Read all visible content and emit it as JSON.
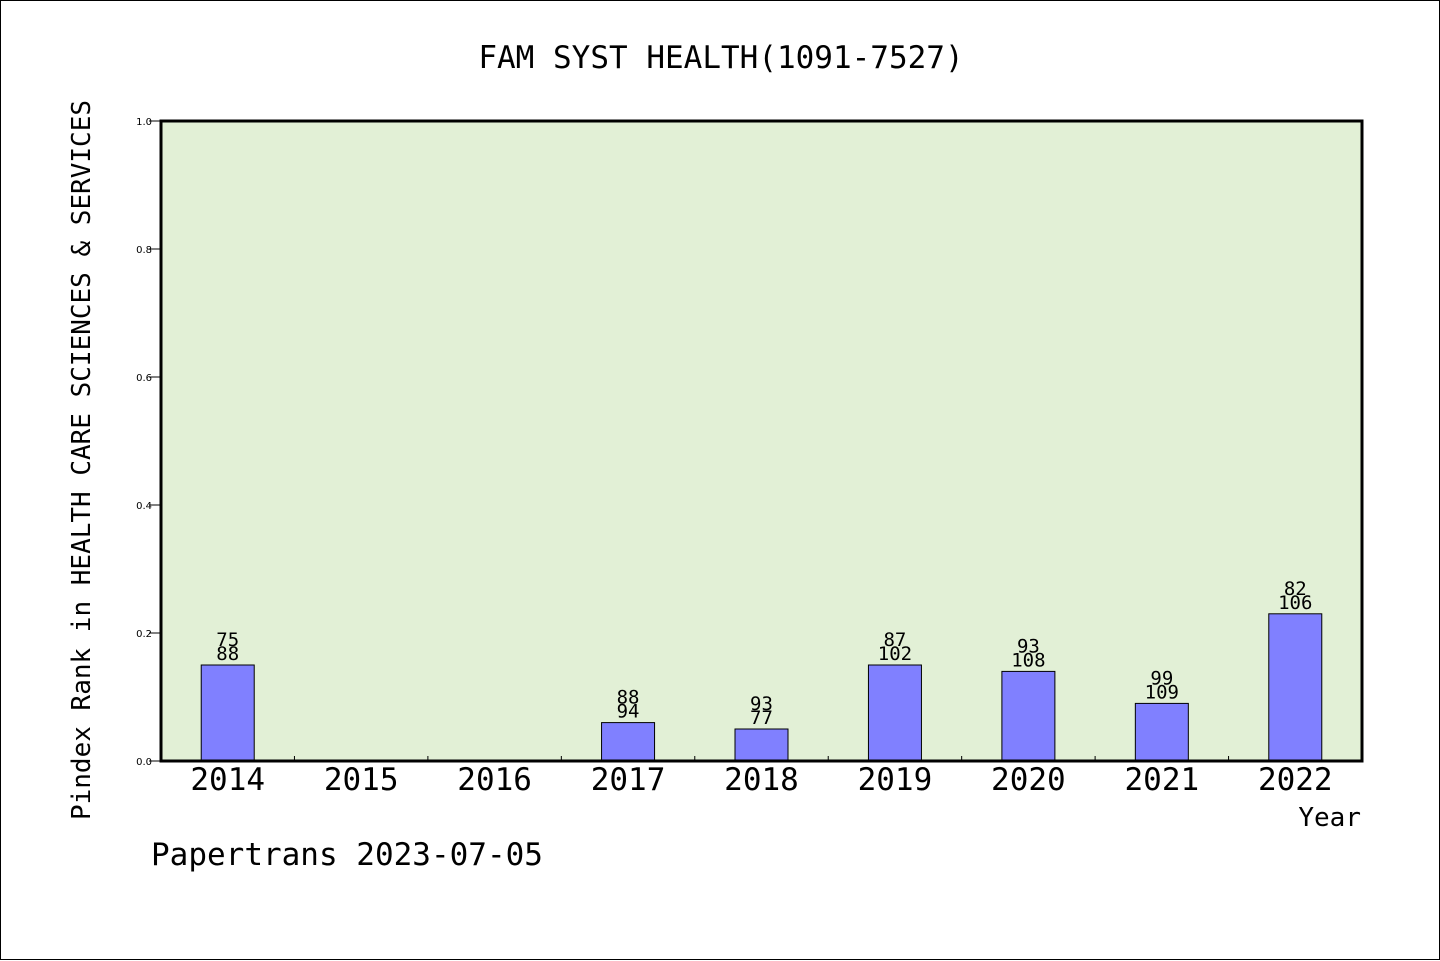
{
  "chart_data": {
    "type": "bar",
    "title": "FAM SYST HEALTH(1091-7527)",
    "ylabel": "Pindex Rank in HEALTH CARE SCIENCES & SERVICES",
    "xlabel": "Year",
    "footer": "Papertrans 2023-07-05",
    "categories": [
      "2014",
      "2015",
      "2016",
      "2017",
      "2018",
      "2019",
      "2020",
      "2021",
      "2022"
    ],
    "values": [
      0.15,
      0,
      0,
      0.06,
      0.05,
      0.15,
      0.14,
      0.09,
      0.23
    ],
    "label_top": [
      "75",
      "",
      "",
      "88",
      "93",
      "87",
      "93",
      "99",
      "82"
    ],
    "label_bottom": [
      "88",
      "",
      "",
      "94",
      "77",
      "102",
      "108",
      "109",
      "106"
    ],
    "ylim": [
      0,
      1.0
    ],
    "yticks": [
      "0.0",
      "0.2",
      "0.4",
      "0.6",
      "0.8",
      "1.0"
    ],
    "grid": false,
    "colors": {
      "plot_bg": "#e2f0d6",
      "bar_fill": "#8080ff",
      "bar_stroke": "#000000",
      "text": "#000000"
    }
  }
}
